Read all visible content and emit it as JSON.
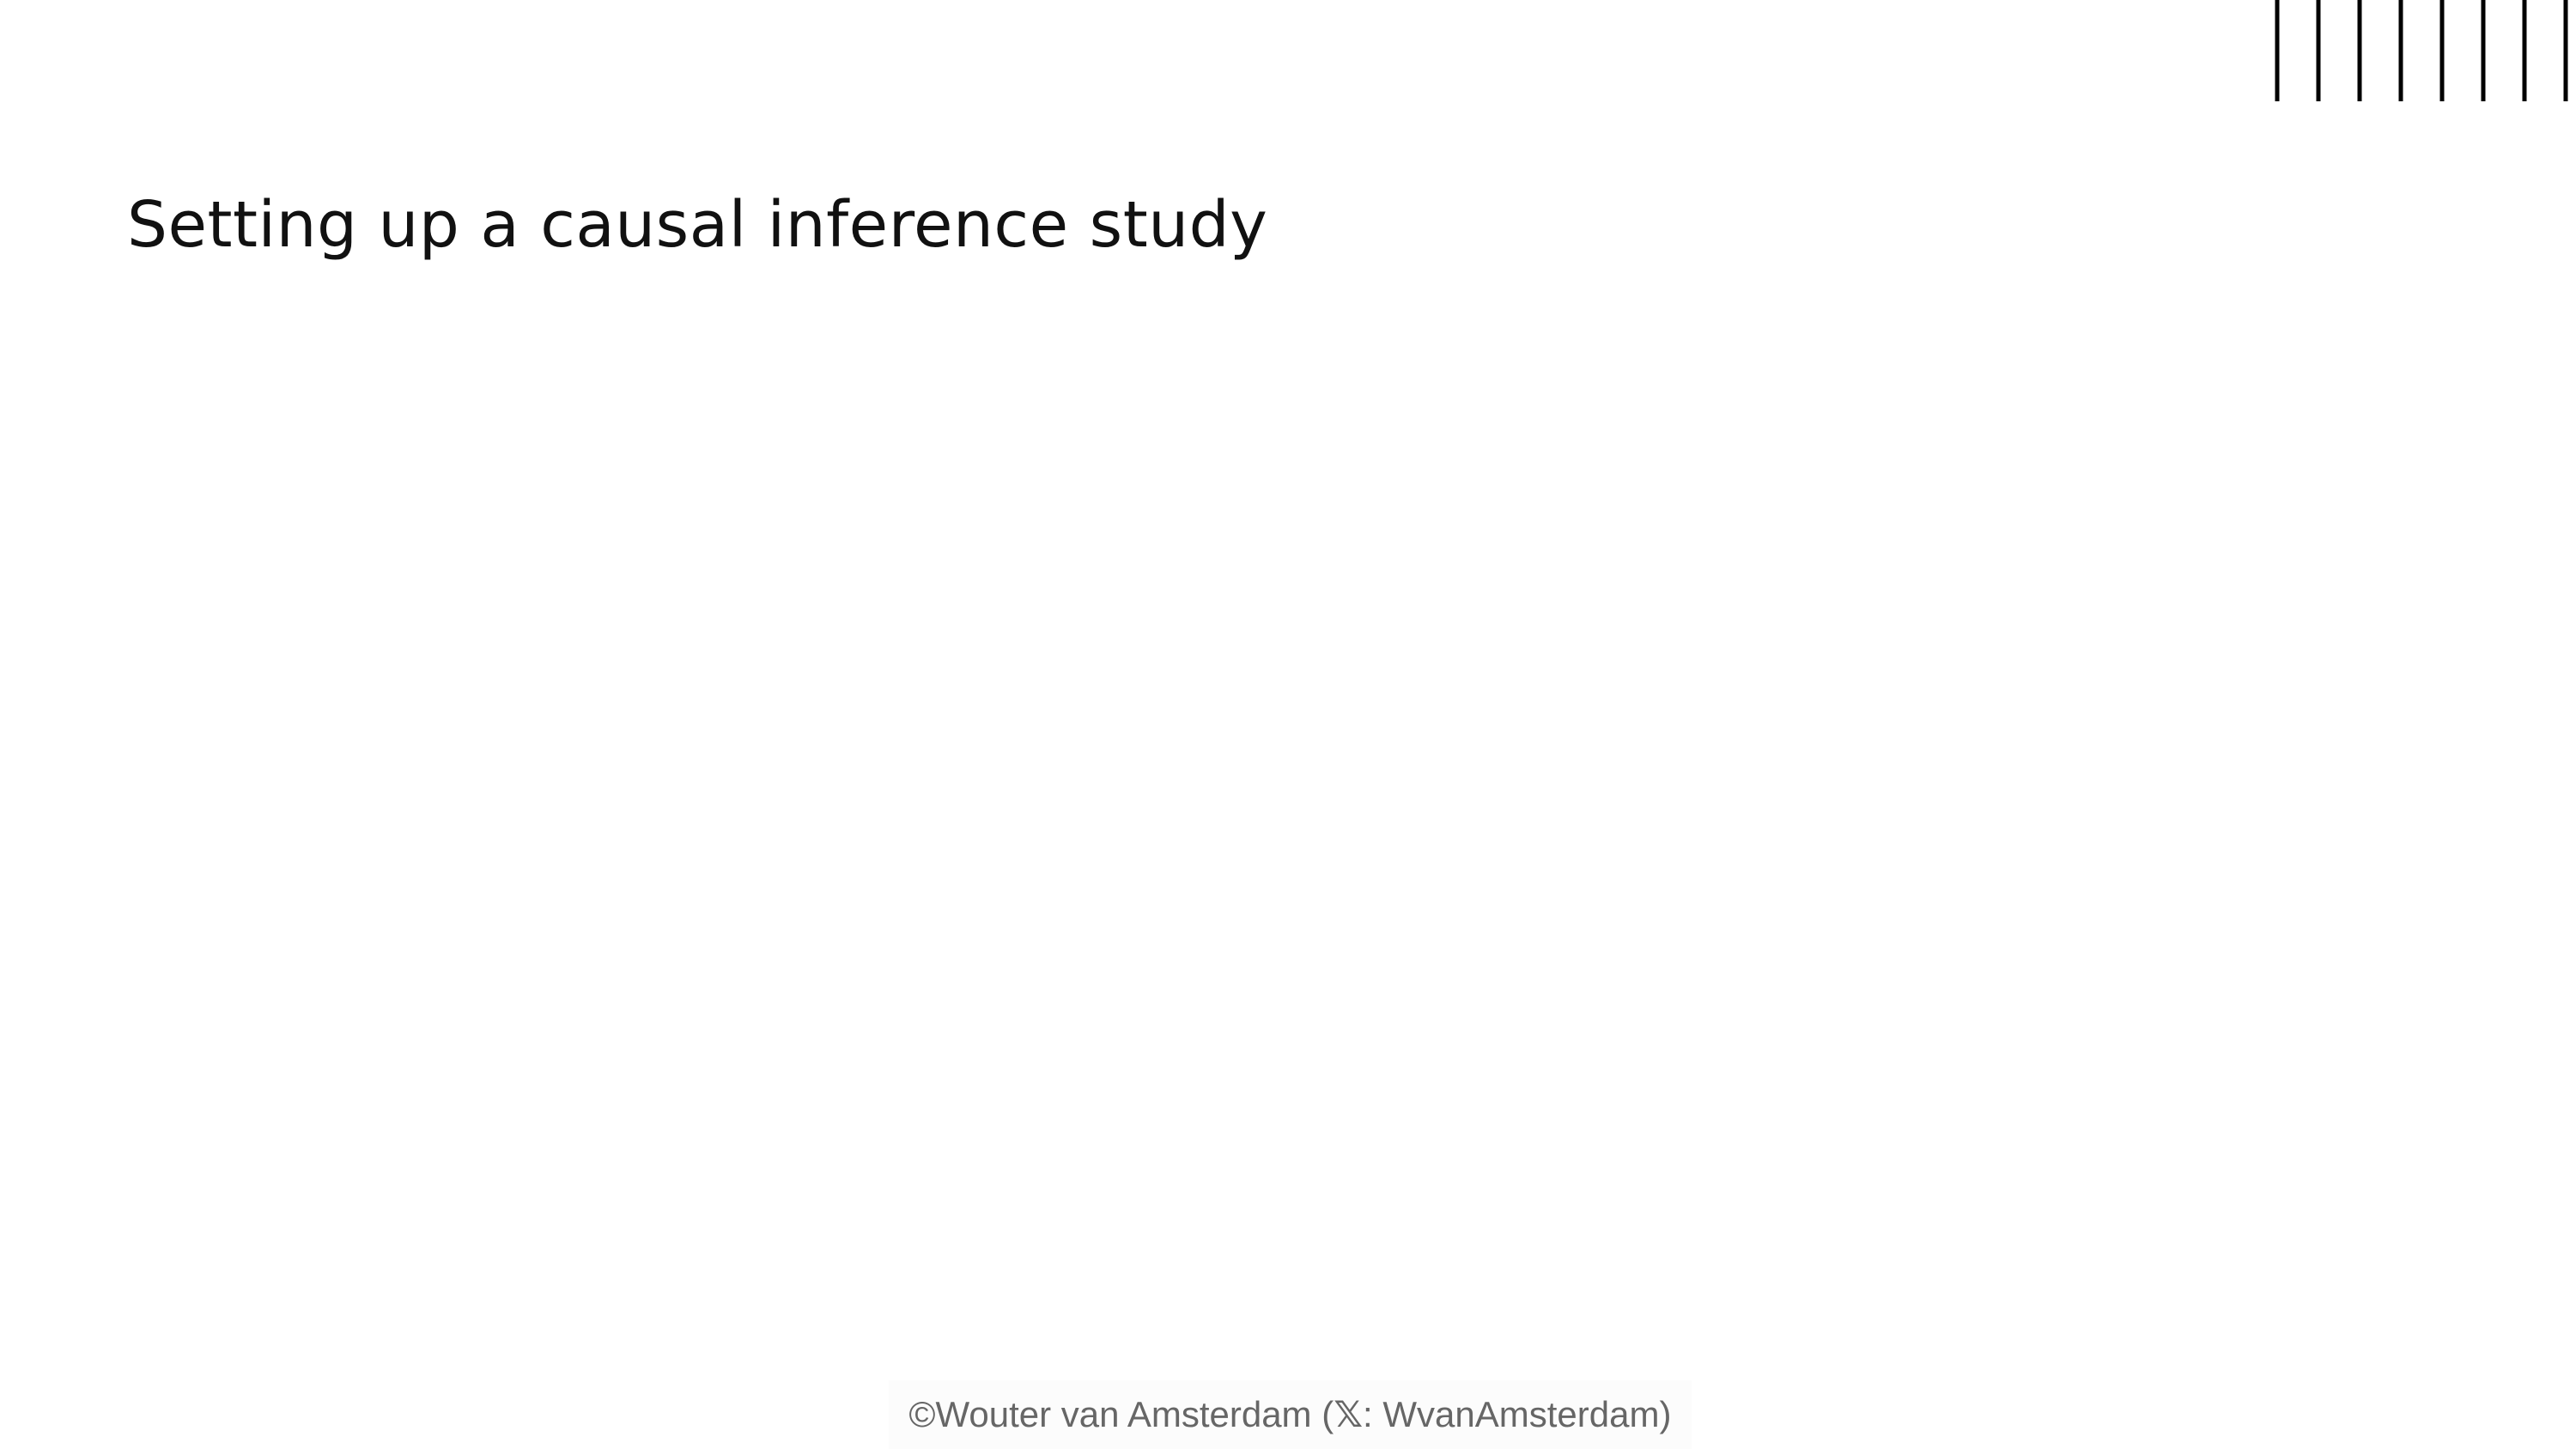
{
  "slide": {
    "title": "Setting up a causal inference study"
  },
  "decoration": {
    "icon": "vertical-lines-decoration",
    "line_count": 8,
    "color": "#000000"
  },
  "footer": {
    "prefix": "©Wouter van Amsterdam (",
    "icon": "x-logo-icon",
    "icon_glyph": "𝕏",
    "suffix": ": WvanAmsterdam)"
  }
}
